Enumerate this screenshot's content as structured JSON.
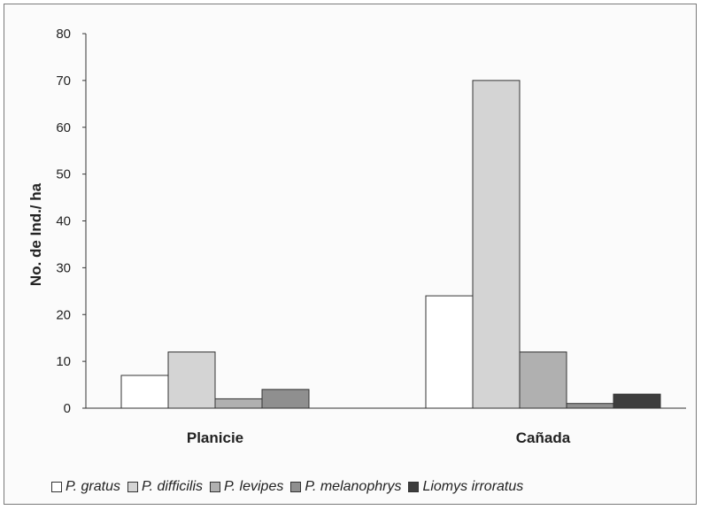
{
  "chart_data": {
    "type": "bar",
    "ylabel": "No. de Ind./ ha",
    "ylim": [
      0,
      80
    ],
    "yticks": [
      0,
      10,
      20,
      30,
      40,
      50,
      60,
      70,
      80
    ],
    "grid": false,
    "legend_position": "bottom",
    "categories": [
      "Planicie",
      "Cañada"
    ],
    "series": [
      {
        "name": "P. gratus",
        "color": "#ffffff",
        "values": [
          7,
          24
        ]
      },
      {
        "name": "P. difficilis",
        "color": "#d4d4d4",
        "values": [
          12,
          70
        ]
      },
      {
        "name": "P. levipes",
        "color": "#b0b0b0",
        "values": [
          2,
          12
        ]
      },
      {
        "name": "P. melanophrys",
        "color": "#8f8f8f",
        "values": [
          4,
          1
        ]
      },
      {
        "name": "Liomys irroratus",
        "color": "#3d3d3d",
        "values": [
          0,
          3
        ]
      }
    ]
  }
}
